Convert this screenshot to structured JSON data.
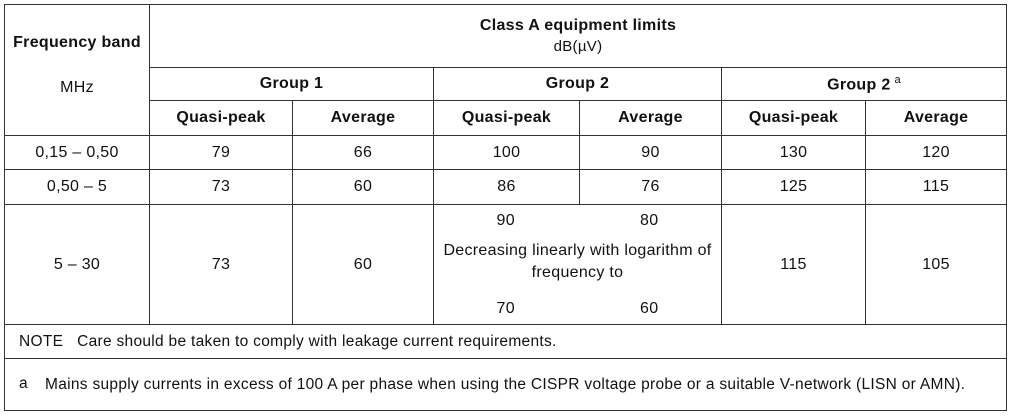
{
  "table": {
    "header": {
      "freq_band_label": "Frequency band",
      "freq_unit": "MHz",
      "title": "Class A equipment limits",
      "unit": "dB(µV)",
      "groups": [
        {
          "label": "Group 1",
          "footnote": ""
        },
        {
          "label": "Group 2",
          "footnote": ""
        },
        {
          "label": "Group 2",
          "footnote": "a"
        }
      ],
      "sub_quasi_peak": "Quasi-peak",
      "sub_average": "Average"
    },
    "rows": [
      {
        "band": "0,15 – 0,50",
        "g1_qp": "79",
        "g1_avg": "66",
        "g2_qp": "100",
        "g2_avg": "90",
        "g2a_qp": "130",
        "g2a_avg": "120"
      },
      {
        "band": "0,50 – 5",
        "g1_qp": "73",
        "g1_avg": "60",
        "g2_qp": "86",
        "g2_avg": "76",
        "g2a_qp": "125",
        "g2a_avg": "115"
      },
      {
        "band": "5 – 30",
        "g1_qp": "73",
        "g1_avg": "60",
        "g2_qp_start": "90",
        "g2_avg_start": "80",
        "g2_note": "Decreasing linearly with logarithm of frequency to",
        "g2_qp_end": "70",
        "g2_avg_end": "60",
        "g2a_qp": "115",
        "g2a_avg": "105"
      }
    ],
    "note": "NOTE   Care should be taken to comply with leakage current requirements.",
    "footnote": {
      "key": "a",
      "text": "Mains supply currents in excess of 100 A per phase when using the CISPR voltage probe or a suitable V-network (LISN or AMN)."
    }
  }
}
